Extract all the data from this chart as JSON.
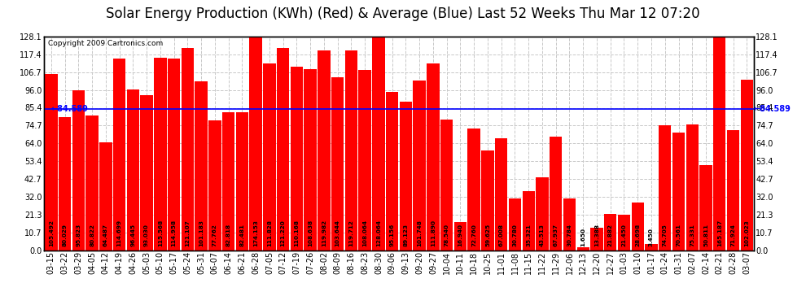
{
  "title": "Solar Energy Production (KWh) (Red) & Average (Blue) Last 52 Weeks Thu Mar 12 07:20",
  "copyright": "Copyright 2009 Cartronics.com",
  "average": 84.589,
  "bar_color": "#ff0000",
  "avg_line_color": "#0000ff",
  "background_color": "#ffffff",
  "plot_bg_color": "#ffffff",
  "grid_color": "#c8c8c8",
  "ytick_labels": [
    "0.0",
    "10.7",
    "21.3",
    "32.0",
    "42.7",
    "53.4",
    "64.0",
    "74.7",
    "85.4",
    "96.0",
    "106.7",
    "117.4",
    "128.1"
  ],
  "ytick_values": [
    0.0,
    10.7,
    21.3,
    32.0,
    42.7,
    53.4,
    64.0,
    74.7,
    85.4,
    96.0,
    106.7,
    117.4,
    128.1
  ],
  "categories": [
    "03-15",
    "03-22",
    "03-29",
    "04-05",
    "04-12",
    "04-19",
    "04-26",
    "05-03",
    "05-10",
    "05-17",
    "05-24",
    "05-31",
    "06-07",
    "06-14",
    "06-21",
    "06-28",
    "07-05",
    "07-12",
    "07-19",
    "07-26",
    "08-02",
    "08-09",
    "08-16",
    "08-23",
    "08-30",
    "09-06",
    "09-13",
    "09-20",
    "09-27",
    "10-04",
    "10-11",
    "10-18",
    "10-25",
    "11-01",
    "11-08",
    "11-15",
    "11-22",
    "11-29",
    "12-06",
    "12-13",
    "12-20",
    "12-27",
    "01-03",
    "01-10",
    "01-17",
    "01-24",
    "01-31",
    "02-07",
    "02-14",
    "02-21",
    "02-28",
    "03-07"
  ],
  "values": [
    105.492,
    80.029,
    95.823,
    80.822,
    64.487,
    114.699,
    96.445,
    93.03,
    115.568,
    114.958,
    121.107,
    101.183,
    77.762,
    82.818,
    82.481,
    174.153,
    111.828,
    121.22,
    110.168,
    108.638,
    119.982,
    103.644,
    119.712,
    108.064,
    128.064,
    95.156,
    89.123,
    101.748,
    111.89,
    78.54,
    16.94,
    72.76,
    59.625,
    67.008,
    30.78,
    35.321,
    43.513,
    67.937,
    30.784,
    1.65,
    13.388,
    21.882,
    21.45,
    28.698,
    3.45,
    74.705,
    70.561,
    75.331,
    50.811,
    165.187,
    71.924,
    102.023
  ],
  "value_labels": [
    "105.492",
    "80.029",
    "95.823",
    "80.822",
    "64.487",
    "114.699",
    "96.445",
    "93.030",
    "115.568",
    "114.958",
    "121.107",
    "101.183",
    "77.762",
    "82.818",
    "82.481",
    "174.153",
    "111.828",
    "121.220",
    "110.168",
    "108.638",
    "119.982",
    "103.644",
    "119.712",
    "108.064",
    "128.064",
    "95.156",
    "89.123",
    "101.748",
    "111.890",
    "78.540",
    "16.940",
    "72.760",
    "59.625",
    "67.008",
    "30.780",
    "35.321",
    "43.513",
    "67.937",
    "30.784",
    "1.650",
    "13.388",
    "21.882",
    "21.450",
    "28.698",
    "3.450",
    "74.705",
    "70.561",
    "75.331",
    "50.811",
    "165.187",
    "71.924",
    "102.023"
  ],
  "ylim": [
    0,
    128.1
  ],
  "title_fontsize": 12,
  "tick_fontsize": 7,
  "bar_label_fontsize": 5.2,
  "copyright_fontsize": 6.5,
  "avg_label_fontsize": 7
}
